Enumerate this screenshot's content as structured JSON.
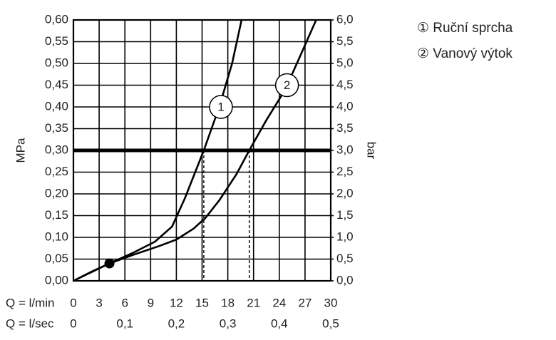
{
  "chart_data": {
    "type": "line",
    "ylabel": "MPa",
    "y2label": "bar",
    "xlabel": "Q = l/min",
    "x2label": "Q = l/sec",
    "xlim": [
      0,
      30
    ],
    "xticks": [
      0,
      3,
      6,
      9,
      12,
      15,
      18,
      21,
      24,
      27,
      30
    ],
    "x2lim": [
      0,
      0.5
    ],
    "x2ticks": [
      0,
      {
        "value": 0.1,
        "label": "0,1"
      },
      {
        "value": 0.2,
        "label": "0,2"
      },
      {
        "value": 0.3,
        "label": "0,3"
      },
      {
        "value": 0.4,
        "label": "0,4"
      },
      {
        "value": 0.5,
        "label": "0,5"
      }
    ],
    "ylim": [
      0,
      0.6
    ],
    "yticks": [
      {
        "value": 0,
        "label": "0,00"
      },
      {
        "value": 0.05,
        "label": "0,05"
      },
      {
        "value": 0.1,
        "label": "0,10"
      },
      {
        "value": 0.15,
        "label": "0,15"
      },
      {
        "value": 0.2,
        "label": "0,20"
      },
      {
        "value": 0.25,
        "label": "0,25"
      },
      {
        "value": 0.3,
        "label": "0,30"
      },
      {
        "value": 0.35,
        "label": "0,35"
      },
      {
        "value": 0.4,
        "label": "0,40"
      },
      {
        "value": 0.45,
        "label": "0,45"
      },
      {
        "value": 0.5,
        "label": "0,50"
      },
      {
        "value": 0.55,
        "label": "0,55"
      },
      {
        "value": 0.6,
        "label": "0,60"
      }
    ],
    "y2lim": [
      0,
      6
    ],
    "y2ticks": [
      {
        "value": 0,
        "label": "0,0"
      },
      {
        "value": 0.5,
        "label": "0,5"
      },
      {
        "value": 1,
        "label": "1,0"
      },
      {
        "value": 1.5,
        "label": "1,5"
      },
      {
        "value": 2,
        "label": "2,0"
      },
      {
        "value": 2.5,
        "label": "2,5"
      },
      {
        "value": 3,
        "label": "3,0"
      },
      {
        "value": 3.5,
        "label": "3,5"
      },
      {
        "value": 4,
        "label": "4,0"
      },
      {
        "value": 4.5,
        "label": "4,5"
      },
      {
        "value": 5,
        "label": "5,0"
      },
      {
        "value": 5.5,
        "label": "5,5"
      },
      {
        "value": 6,
        "label": "6,0"
      }
    ],
    "grid": true,
    "reference_y": 0.3,
    "reference_x": [
      15.2,
      20.5
    ],
    "point": {
      "x": 4.2,
      "y": 0.04
    },
    "series": [
      {
        "name": "① Ruční sprcha",
        "label": "1",
        "label_at": [
          17.2,
          0.4
        ],
        "color": "#000000",
        "x": [
          0,
          2,
          4.2,
          7,
          9.5,
          11.5,
          13,
          15.2,
          17,
          18.5,
          19.6
        ],
        "values": [
          0,
          0.02,
          0.04,
          0.065,
          0.09,
          0.125,
          0.19,
          0.3,
          0.4,
          0.5,
          0.6
        ]
      },
      {
        "name": "② Vanový výtok",
        "label": "2",
        "label_at": [
          24.9,
          0.45
        ],
        "color": "#000000",
        "x": [
          0,
          4.2,
          7,
          10,
          12,
          14,
          15.4,
          17,
          19,
          20.5,
          22.5,
          24.7,
          26.5,
          28.3
        ],
        "values": [
          0,
          0.04,
          0.06,
          0.08,
          0.095,
          0.12,
          0.145,
          0.185,
          0.245,
          0.3,
          0.37,
          0.44,
          0.52,
          0.6
        ]
      }
    ]
  }
}
